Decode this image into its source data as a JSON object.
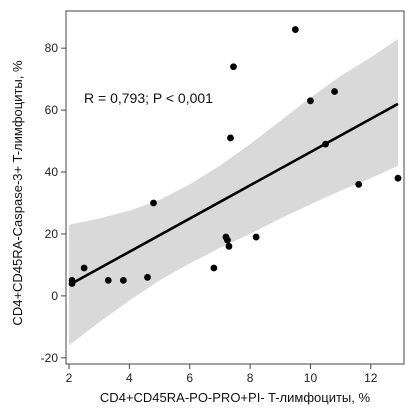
{
  "chart_data": {
    "type": "scatter",
    "xlabel": "CD4+CD45RA-PO-PRO+PI- T-лимфоциты, %",
    "ylabel": "CD4+CD45RA-Caspase-3+ T-лимфоциты, %",
    "annotation": "R = 0,793; P < 0,001",
    "xlim": [
      1.9,
      13.1
    ],
    "ylim": [
      -22,
      92
    ],
    "xticks": [
      "2",
      "4",
      "6",
      "8",
      "10",
      "12"
    ],
    "xtick_values": [
      2,
      4,
      6,
      8,
      10,
      12
    ],
    "yticks": [
      "-20",
      "0",
      "20",
      "40",
      "60",
      "80"
    ],
    "ytick_values": [
      -20,
      0,
      20,
      40,
      60,
      80
    ],
    "grid": false,
    "points": [
      {
        "x": 2.1,
        "y": 5
      },
      {
        "x": 2.1,
        "y": 4
      },
      {
        "x": 2.5,
        "y": 9
      },
      {
        "x": 3.3,
        "y": 5
      },
      {
        "x": 3.8,
        "y": 5
      },
      {
        "x": 4.6,
        "y": 6
      },
      {
        "x": 4.8,
        "y": 30
      },
      {
        "x": 6.8,
        "y": 9
      },
      {
        "x": 7.2,
        "y": 19
      },
      {
        "x": 7.25,
        "y": 18
      },
      {
        "x": 7.3,
        "y": 16
      },
      {
        "x": 7.35,
        "y": 51
      },
      {
        "x": 7.45,
        "y": 74
      },
      {
        "x": 8.2,
        "y": 19
      },
      {
        "x": 9.5,
        "y": 86
      },
      {
        "x": 10.0,
        "y": 63
      },
      {
        "x": 10.5,
        "y": 49
      },
      {
        "x": 10.8,
        "y": 66
      },
      {
        "x": 11.6,
        "y": 36
      },
      {
        "x": 12.9,
        "y": 38
      }
    ],
    "fit_line": {
      "x": [
        2.0,
        12.9
      ],
      "y": [
        3.5,
        62
      ]
    },
    "confidence_band": {
      "x": [
        2.0,
        3.0,
        4.0,
        5.0,
        6.0,
        7.0,
        8.0,
        9.0,
        10.0,
        11.0,
        12.0,
        12.9
      ],
      "upper": [
        23,
        25,
        27.5,
        31,
        36,
        42,
        49,
        56.5,
        64,
        71,
        77,
        83
      ],
      "lower": [
        -16,
        -8.5,
        -1.5,
        5,
        10.5,
        15.5,
        20,
        25,
        29.5,
        34,
        38,
        42
      ]
    },
    "colors": {
      "points": "#000000",
      "line": "#000000",
      "band": "#d9d9d9",
      "axis": "#444444"
    }
  }
}
